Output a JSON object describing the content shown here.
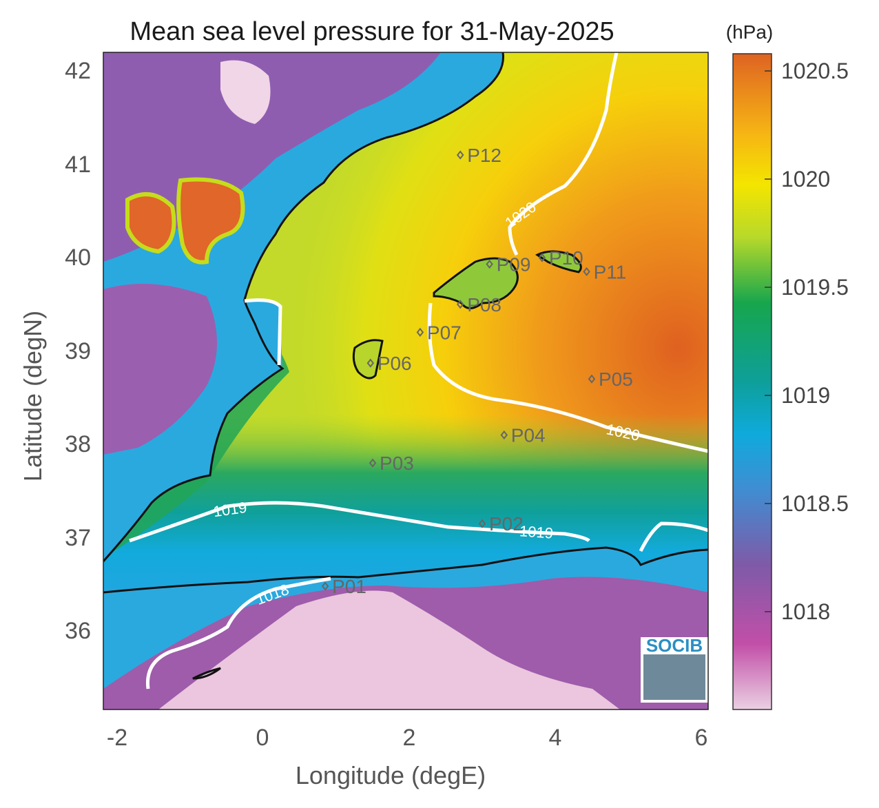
{
  "title": "Mean sea level pressure for 31-May-2025",
  "colorbar_unit": "(hPa)",
  "colorbar_ticks": [
    "1018",
    "1018.5",
    "1019",
    "1019.5",
    "1020",
    "1020.5"
  ],
  "x_axis": {
    "label": "Longitude (degE)",
    "ticks": [
      "-2",
      "0",
      "2",
      "4",
      "6"
    ],
    "range": [
      -2.2,
      6.1
    ]
  },
  "y_axis": {
    "label": "Latitude (degN)",
    "ticks": [
      "36",
      "37",
      "38",
      "39",
      "40",
      "41",
      "42"
    ],
    "range": [
      35.1,
      42.2
    ]
  },
  "contours": [
    {
      "label": "1020",
      "value": 1020
    },
    {
      "label": "1019",
      "value": 1019
    },
    {
      "label": "1018",
      "value": 1018
    }
  ],
  "stations": [
    {
      "name": "P01",
      "lon": 0.85,
      "lat": 36.48
    },
    {
      "name": "P02",
      "lon": 3.0,
      "lat": 37.15
    },
    {
      "name": "P03",
      "lon": 1.5,
      "lat": 37.8
    },
    {
      "name": "P04",
      "lon": 3.3,
      "lat": 38.1
    },
    {
      "name": "P05",
      "lon": 4.5,
      "lat": 38.7
    },
    {
      "name": "P06",
      "lon": 1.47,
      "lat": 38.87
    },
    {
      "name": "P07",
      "lon": 2.15,
      "lat": 39.2
    },
    {
      "name": "P08",
      "lon": 2.7,
      "lat": 39.5
    },
    {
      "name": "P09",
      "lon": 3.1,
      "lat": 39.93
    },
    {
      "name": "P10",
      "lon": 3.82,
      "lat": 40.0
    },
    {
      "name": "P11",
      "lon": 4.43,
      "lat": 39.85
    },
    {
      "name": "P12",
      "lon": 2.7,
      "lat": 41.1
    }
  ],
  "logo_text": "SOCIB",
  "colors": {
    "low": "#e6bfd9",
    "mid_low": "#1aa5dc",
    "mid": "#0f9c85",
    "mid_high": "#d6dc1a",
    "high_yellow": "#f5e400",
    "high": "#e06420"
  }
}
